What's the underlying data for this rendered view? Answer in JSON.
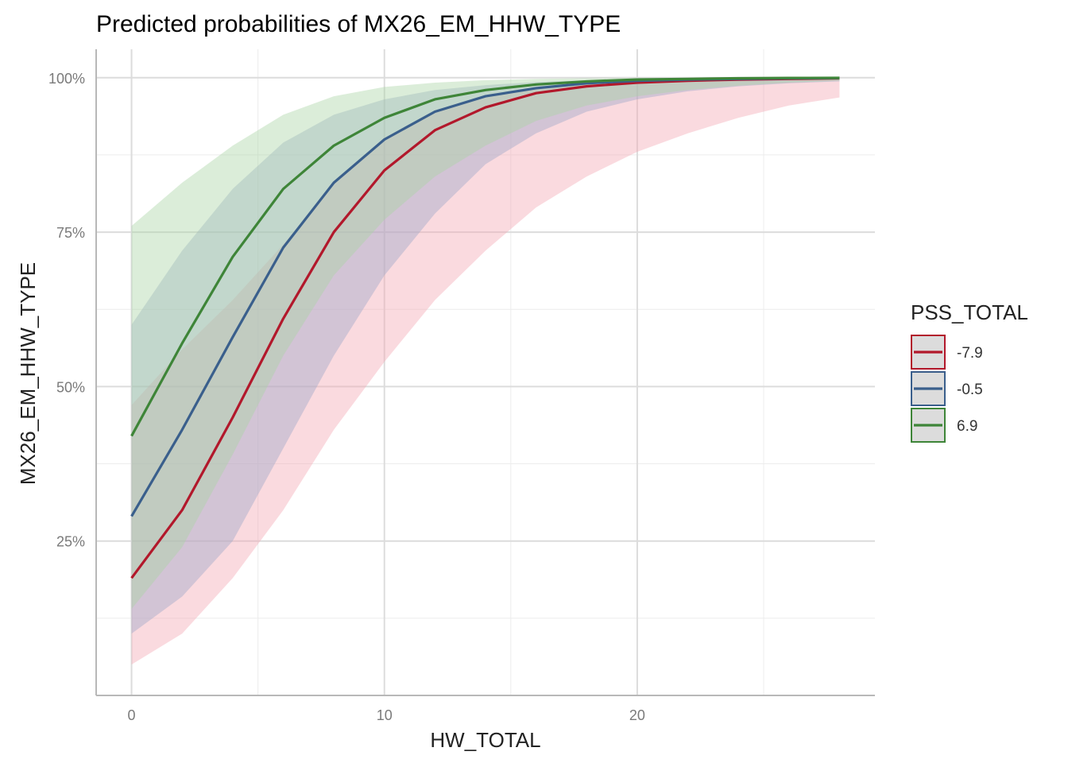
{
  "chart_data": {
    "type": "line",
    "title": "Predicted probabilities of MX26_EM_HHW_TYPE",
    "xlabel": "HW_TOTAL",
    "ylabel": "MX26_EM_HHW_TYPE",
    "xlim": [
      -1.4,
      29.4
    ],
    "ylim": [
      0.0,
      1.046
    ],
    "x_ticks": [
      0,
      10,
      20
    ],
    "x_tick_labels": [
      "0",
      "10",
      "20"
    ],
    "x_minor_ticks": [
      5,
      15,
      25
    ],
    "y_ticks": [
      0.25,
      0.5,
      0.75,
      1.0
    ],
    "y_tick_labels": [
      "25%",
      "50%",
      "75%",
      "100%"
    ],
    "y_minor_ticks": [
      0.125,
      0.375,
      0.625,
      0.875
    ],
    "grid": true,
    "legend": {
      "title": "PSS_TOTAL",
      "position": "right"
    },
    "x": [
      0,
      2,
      4,
      6,
      8,
      10,
      12,
      14,
      16,
      18,
      20,
      22,
      24,
      26,
      28
    ],
    "series": [
      {
        "name": "-7.9",
        "color": "#b2182b",
        "fill": "#f4a7b2",
        "values": [
          0.19,
          0.3,
          0.45,
          0.61,
          0.75,
          0.85,
          0.915,
          0.952,
          0.975,
          0.986,
          0.992,
          0.995,
          0.997,
          0.998,
          0.999
        ],
        "lower": [
          0.05,
          0.1,
          0.19,
          0.3,
          0.43,
          0.54,
          0.64,
          0.72,
          0.79,
          0.84,
          0.88,
          0.91,
          0.935,
          0.955,
          0.968
        ],
        "upper": [
          0.47,
          0.56,
          0.64,
          0.73,
          0.83,
          0.9,
          0.945,
          0.968,
          0.982,
          0.99,
          0.994,
          0.996,
          0.998,
          0.999,
          0.9995
        ]
      },
      {
        "name": "-0.5",
        "color": "#3a5f8c",
        "fill": "#9aa8c8",
        "values": [
          0.29,
          0.43,
          0.58,
          0.725,
          0.83,
          0.9,
          0.945,
          0.97,
          0.983,
          0.991,
          0.995,
          0.997,
          0.998,
          0.999,
          0.9995
        ],
        "lower": [
          0.1,
          0.16,
          0.25,
          0.4,
          0.55,
          0.68,
          0.78,
          0.86,
          0.91,
          0.945,
          0.965,
          0.978,
          0.986,
          0.991,
          0.994
        ],
        "upper": [
          0.6,
          0.72,
          0.82,
          0.895,
          0.94,
          0.965,
          0.98,
          0.988,
          0.993,
          0.996,
          0.998,
          0.999,
          0.9993,
          0.9996,
          0.9998
        ]
      },
      {
        "name": "6.9",
        "color": "#3e8538",
        "fill": "#a9d4a4",
        "values": [
          0.42,
          0.57,
          0.71,
          0.82,
          0.89,
          0.935,
          0.965,
          0.98,
          0.989,
          0.994,
          0.997,
          0.998,
          0.999,
          0.9995,
          0.9997
        ],
        "lower": [
          0.14,
          0.24,
          0.39,
          0.55,
          0.68,
          0.77,
          0.84,
          0.89,
          0.93,
          0.955,
          0.97,
          0.98,
          0.987,
          0.992,
          0.995
        ],
        "upper": [
          0.76,
          0.83,
          0.89,
          0.94,
          0.97,
          0.985,
          0.992,
          0.996,
          0.998,
          0.999,
          0.9995,
          0.9997,
          0.9998,
          0.9999,
          0.99995
        ]
      }
    ]
  }
}
